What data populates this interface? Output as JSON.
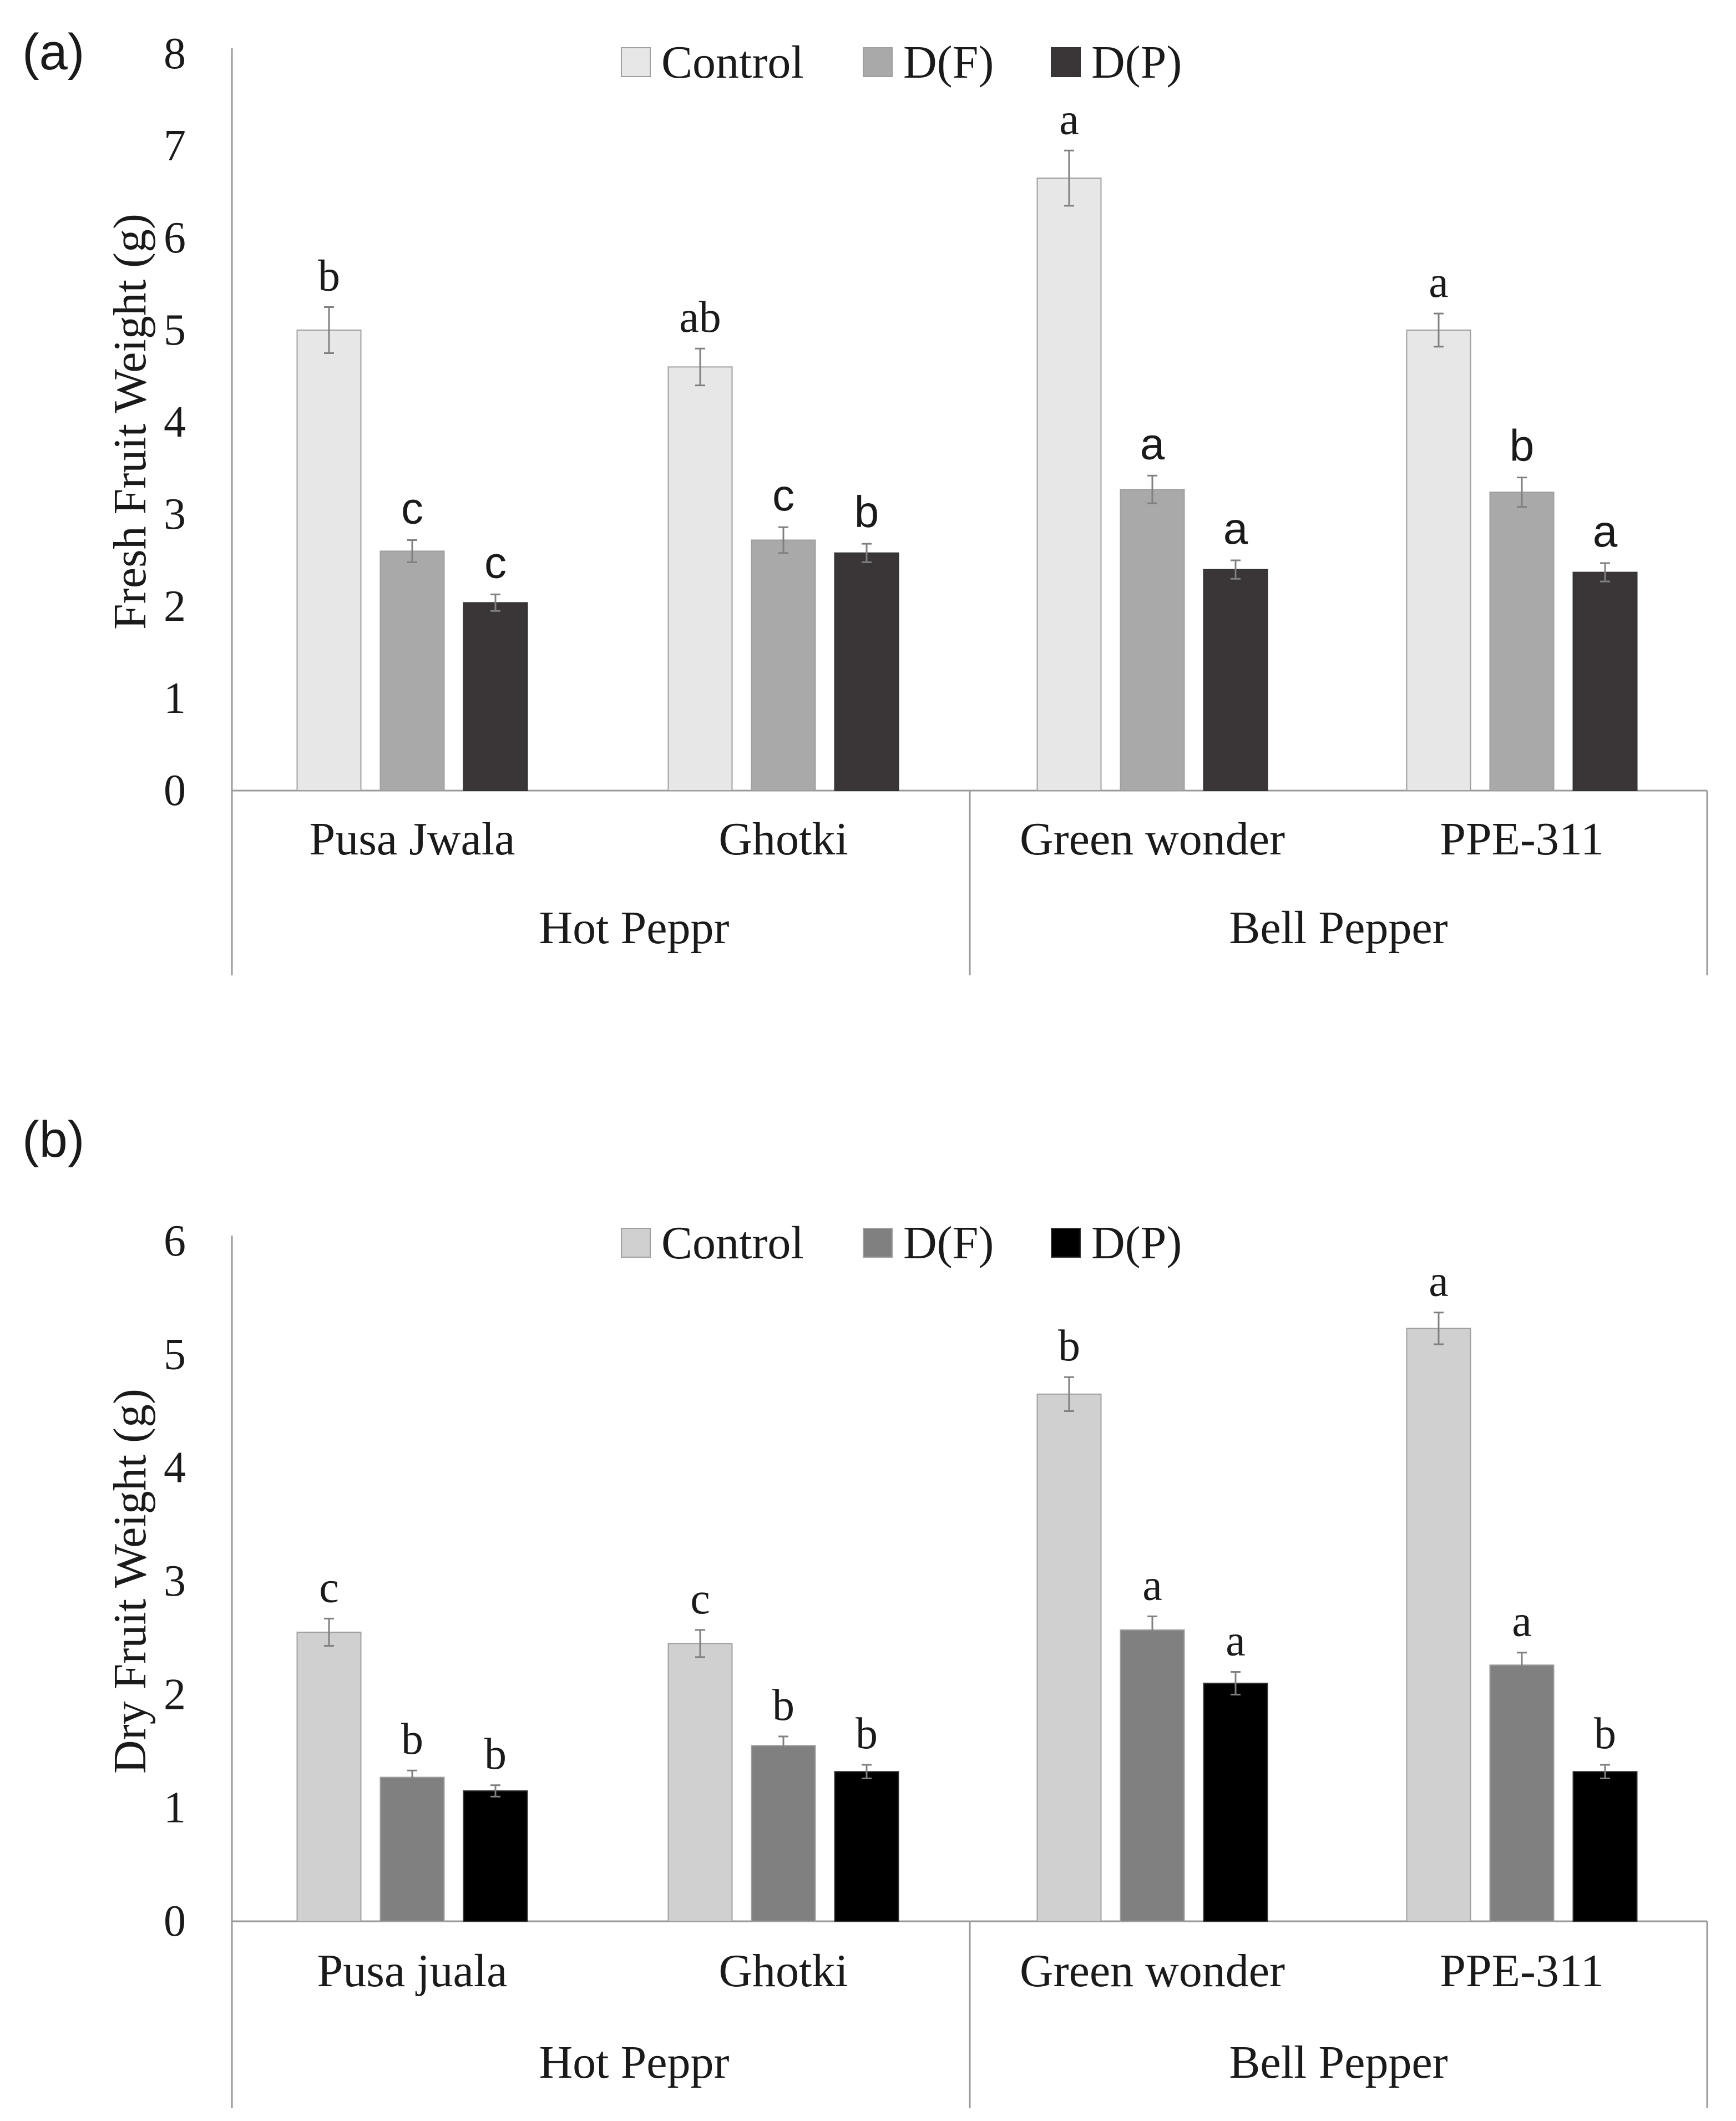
{
  "colors": {
    "axis": "#9a9a9a",
    "error_bar": "#808080",
    "text": "#1a1a1a",
    "bar_stroke": "#9f9f9f",
    "bar_stroke_dark": "#333333"
  },
  "chart_data": [
    {
      "type": "bar",
      "panel_label": "(a)",
      "title": "",
      "ylabel": "Fresh Fruit Weight (g)",
      "xlabel": "",
      "ylim": [
        0,
        8
      ],
      "yticks": [
        0,
        1,
        2,
        3,
        4,
        5,
        6,
        7,
        8
      ],
      "grid": false,
      "legend_position": "top-center",
      "categories": [
        "Pusa Jwala",
        "Ghotki",
        "Green wonder",
        "PPE-311"
      ],
      "groups": [
        {
          "label": "Hot Peppr",
          "categories": [
            "Pusa Jwala",
            "Ghotki"
          ]
        },
        {
          "label": "Bell Pepper",
          "categories": [
            "Green wonder",
            "PPE-311"
          ]
        }
      ],
      "series": [
        {
          "name": "Control",
          "color": "#e7e7e7",
          "values": [
            5.0,
            4.6,
            6.65,
            5.0
          ],
          "errors": [
            0.25,
            0.2,
            0.3,
            0.18
          ],
          "letters": [
            "b",
            "ab",
            "a",
            "a"
          ],
          "letter_font": "serif"
        },
        {
          "name": "D(F)",
          "color": "#a9a9a9",
          "values": [
            2.6,
            2.72,
            3.27,
            3.24
          ],
          "errors": [
            0.12,
            0.14,
            0.15,
            0.16
          ],
          "letters": [
            "c",
            "c",
            "a",
            "b"
          ],
          "letter_font": "sans"
        },
        {
          "name": "D(P)",
          "color": "#3a3637",
          "values": [
            2.04,
            2.58,
            2.4,
            2.37
          ],
          "errors": [
            0.09,
            0.1,
            0.1,
            0.1
          ],
          "letters": [
            "c",
            "b",
            "a",
            "a"
          ],
          "letter_font": "sans"
        }
      ]
    },
    {
      "type": "bar",
      "panel_label": "(b)",
      "title": "",
      "ylabel": "Dry Fruit Weight (g)",
      "xlabel": "",
      "ylim": [
        0,
        6
      ],
      "yticks": [
        0,
        1,
        2,
        3,
        4,
        5,
        6
      ],
      "grid": false,
      "legend_position": "top-center",
      "categories": [
        "Pusa juala",
        "Ghotki",
        "Green wonder",
        "PPE-311"
      ],
      "groups": [
        {
          "label": "Hot Peppr",
          "categories": [
            "Pusa juala",
            "Ghotki"
          ]
        },
        {
          "label": "Bell Pepper",
          "categories": [
            "Green wonder",
            "PPE-311"
          ]
        }
      ],
      "series": [
        {
          "name": "Control",
          "color": "#d0d0d0",
          "values": [
            2.55,
            2.45,
            4.65,
            5.23
          ],
          "errors": [
            0.12,
            0.12,
            0.15,
            0.14
          ],
          "letters": [
            "c",
            "c",
            "b",
            "a"
          ],
          "letter_font": "serif"
        },
        {
          "name": "D(F)",
          "color": "#808080",
          "values": [
            1.27,
            1.55,
            2.57,
            2.26
          ],
          "errors": [
            0.06,
            0.08,
            0.12,
            0.11
          ],
          "letters": [
            "b",
            "b",
            "a",
            "a"
          ],
          "letter_font": "serif"
        },
        {
          "name": "D(P)",
          "color": "#000000",
          "values": [
            1.15,
            1.32,
            2.1,
            1.32
          ],
          "errors": [
            0.05,
            0.06,
            0.1,
            0.06
          ],
          "letters": [
            "b",
            "b",
            "a",
            "b"
          ],
          "letter_font": "serif"
        }
      ]
    }
  ]
}
